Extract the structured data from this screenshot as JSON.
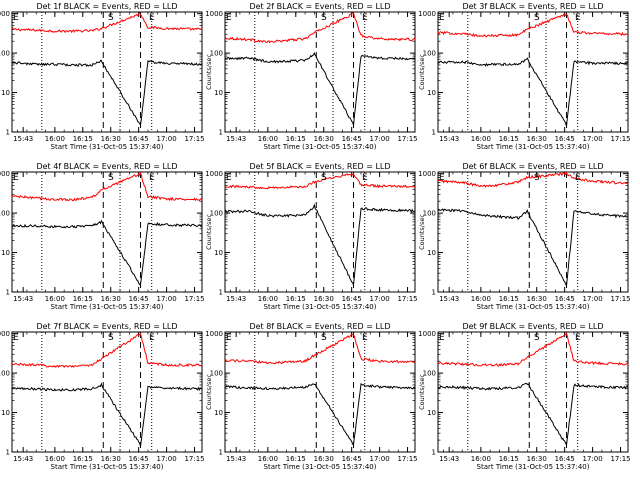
{
  "chart_data": {
    "type": "line",
    "x_tick_labels": [
      "15:43",
      "16:00",
      "16:15",
      "16:30",
      "16:45",
      "17:00",
      "17:15"
    ],
    "x_range": [
      "15:37",
      "17:19"
    ],
    "xlabel": "Start Time (31-Oct-05 15:37:40)",
    "ylabel": "Counts/sec",
    "y_scale": "log",
    "y_tick_labels": [
      "1",
      "10",
      "100",
      "1000"
    ],
    "ylim": [
      1,
      1100
    ],
    "line_colors": {
      "events": "#000000",
      "lld": "#ff0000"
    },
    "grid": false,
    "markers": [
      {
        "label": "E",
        "time": "15:37"
      },
      {
        "label": "S",
        "time": "16:28"
      },
      {
        "label": "E",
        "time": "16:50"
      }
    ],
    "dashed_lines_at": [
      "16:26",
      "16:46"
    ],
    "dotted_lines_at": [
      "15:53",
      "16:35",
      "16:52"
    ],
    "panels": [
      {
        "title": "Det 1f BLACK = Events, RED = LLD",
        "series": [
          {
            "times": [
              "15:37",
              "15:50",
              "16:00",
              "16:10",
              "16:20",
              "16:25",
              "16:46",
              "16:50",
              "17:00",
              "17:19"
            ],
            "events": [
              58,
              52,
              52,
              50,
              50,
              62,
              1.5,
              60,
              55,
              52
            ],
            "lld": [
              400,
              380,
              360,
              360,
              370,
              420,
              1000,
              450,
              420,
              400
            ]
          }
        ]
      },
      {
        "title": "Det 2f BLACK = Events, RED = LLD",
        "series": [
          {
            "times": [
              "15:37",
              "15:50",
              "16:00",
              "16:10",
              "16:20",
              "16:25",
              "16:46",
              "16:50",
              "17:00",
              "17:19"
            ],
            "events": [
              72,
              75,
              60,
              62,
              65,
              95,
              1.5,
              85,
              75,
              70
            ],
            "lld": [
              240,
              220,
              190,
              210,
              230,
              330,
              1000,
              280,
              230,
              220
            ]
          }
        ]
      },
      {
        "title": "Det 3f BLACK = Events, RED = LLD",
        "series": [
          {
            "times": [
              "15:37",
              "15:50",
              "16:00",
              "16:10",
              "16:20",
              "16:25",
              "16:46",
              "16:50",
              "17:00",
              "17:19"
            ],
            "events": [
              58,
              60,
              50,
              52,
              52,
              70,
              1.5,
              62,
              55,
              55
            ],
            "lld": [
              330,
              310,
              270,
              280,
              290,
              400,
              1000,
              340,
              320,
              300
            ]
          }
        ]
      },
      {
        "title": "Det 4f BLACK = Events, RED = LLD",
        "series": [
          {
            "times": [
              "15:37",
              "15:50",
              "16:00",
              "16:10",
              "16:20",
              "16:25",
              "16:46",
              "16:50",
              "17:00",
              "17:19"
            ],
            "events": [
              48,
              47,
              45,
              45,
              47,
              60,
              1.5,
              55,
              50,
              48
            ],
            "lld": [
              270,
              240,
              220,
              220,
              250,
              380,
              1000,
              260,
              230,
              220
            ]
          }
        ]
      },
      {
        "title": "Det 5f BLACK = Events, RED = LLD",
        "series": [
          {
            "times": [
              "15:37",
              "15:50",
              "16:00",
              "16:10",
              "16:20",
              "16:25",
              "16:46",
              "16:50",
              "17:00",
              "17:19"
            ],
            "events": [
              110,
              110,
              85,
              85,
              90,
              150,
              1.5,
              130,
              120,
              115
            ],
            "lld": [
              480,
              460,
              440,
              450,
              460,
              620,
              1000,
              520,
              480,
              470
            ]
          }
        ]
      },
      {
        "title": "Det 6f BLACK = Events, RED = LLD",
        "series": [
          {
            "times": [
              "15:37",
              "15:50",
              "16:00",
              "16:10",
              "16:20",
              "16:25",
              "16:46",
              "16:50",
              "17:00",
              "17:19"
            ],
            "events": [
              120,
              115,
              90,
              80,
              75,
              110,
              1.5,
              110,
              95,
              80
            ],
            "lld": [
              650,
              600,
              480,
              520,
              600,
              800,
              1000,
              750,
              650,
              560
            ]
          }
        ]
      },
      {
        "title": "Det 7f BLACK = Events, RED = LLD",
        "series": [
          {
            "times": [
              "15:37",
              "15:50",
              "16:00",
              "16:10",
              "16:20",
              "16:25",
              "16:46",
              "16:50",
              "17:00",
              "17:19"
            ],
            "events": [
              42,
              40,
              37,
              38,
              40,
              50,
              1.5,
              44,
              42,
              40
            ],
            "lld": [
              170,
              160,
              150,
              150,
              160,
              230,
              1000,
              180,
              160,
              160
            ]
          }
        ]
      },
      {
        "title": "Det 8f BLACK = Events, RED = LLD",
        "series": [
          {
            "times": [
              "15:37",
              "15:50",
              "16:00",
              "16:10",
              "16:20",
              "16:25",
              "16:46",
              "16:50",
              "17:00",
              "17:19"
            ],
            "events": [
              45,
              42,
              40,
              42,
              44,
              55,
              1.5,
              50,
              45,
              42
            ],
            "lld": [
              210,
              200,
              180,
              190,
              200,
              280,
              1000,
              230,
              200,
              190
            ]
          }
        ]
      },
      {
        "title": "Det 9f BLACK = Events, RED = LLD",
        "series": [
          {
            "times": [
              "15:37",
              "15:50",
              "16:00",
              "16:10",
              "16:20",
              "16:25",
              "16:46",
              "16:50",
              "17:00",
              "17:19"
            ],
            "events": [
              45,
              43,
              40,
              41,
              43,
              55,
              1.5,
              50,
              45,
              43
            ],
            "lld": [
              180,
              170,
              160,
              160,
              170,
              250,
              1000,
              200,
              180,
              170
            ]
          }
        ]
      }
    ]
  }
}
